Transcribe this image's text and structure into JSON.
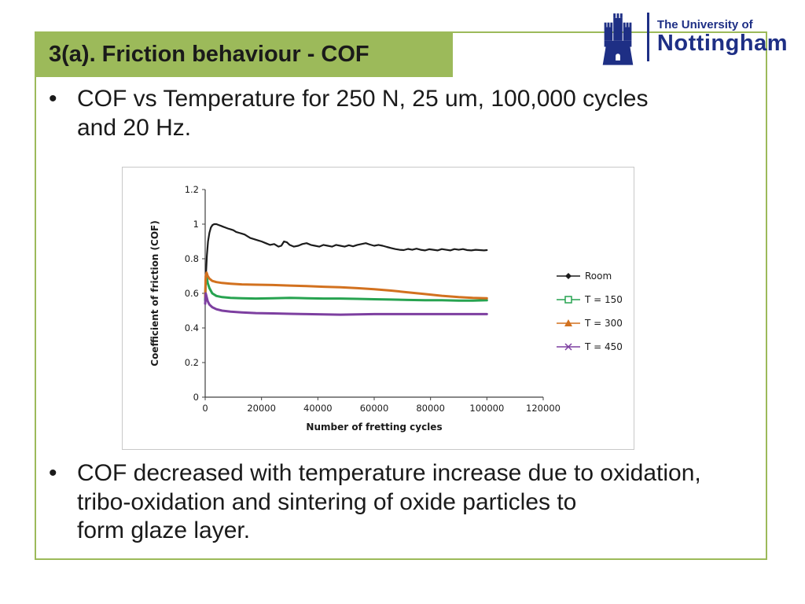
{
  "slide": {
    "title": "3(a). Friction behaviour - COF",
    "bullet_char": "•",
    "bullet1": "COF vs Temperature for 250 N, 25 um, 100,000 cycles\nand 20 Hz.",
    "bullet2": "COF decreased with temperature increase due to oxidation,\ntribo-oxidation and sintering of oxide particles to\nform glaze layer."
  },
  "logo": {
    "line1": "The University of",
    "line2": "Nottingham",
    "color": "#1e2f85"
  },
  "colors": {
    "accent_green": "#9cba5a",
    "frame_border": "#9cba5a",
    "title_text": "#1a1a1a",
    "chart_border": "#c8c8c8",
    "axis_color": "#404040"
  },
  "chart_data": {
    "type": "line",
    "title": "",
    "xlabel": "Number of fretting cycles",
    "ylabel": "Coefficient of friction (COF)",
    "xlim": [
      0,
      120000
    ],
    "ylim": [
      0,
      1.2
    ],
    "xticks": [
      0,
      20000,
      40000,
      60000,
      80000,
      100000,
      120000
    ],
    "yticks": [
      0,
      0.2,
      0.4,
      0.6,
      0.8,
      1,
      1.2
    ],
    "grid": false,
    "legend_position": "right",
    "series": [
      {
        "name": "Room",
        "color": "#1c1c1c",
        "marker": "diamond",
        "points": [
          [
            0,
            0.6
          ],
          [
            300,
            0.72
          ],
          [
            600,
            0.82
          ],
          [
            1000,
            0.9
          ],
          [
            1500,
            0.95
          ],
          [
            2000,
            0.98
          ],
          [
            2600,
            0.995
          ],
          [
            3200,
            1.0
          ],
          [
            4000,
            1.0
          ],
          [
            4800,
            0.995
          ],
          [
            5600,
            0.99
          ],
          [
            6400,
            0.985
          ],
          [
            7200,
            0.98
          ],
          [
            8000,
            0.975
          ],
          [
            9000,
            0.97
          ],
          [
            10000,
            0.965
          ],
          [
            11000,
            0.955
          ],
          [
            12000,
            0.95
          ],
          [
            13000,
            0.945
          ],
          [
            14000,
            0.94
          ],
          [
            15000,
            0.93
          ],
          [
            16000,
            0.92
          ],
          [
            17000,
            0.915
          ],
          [
            18000,
            0.91
          ],
          [
            19000,
            0.905
          ],
          [
            20000,
            0.9
          ],
          [
            21500,
            0.89
          ],
          [
            23000,
            0.88
          ],
          [
            24500,
            0.885
          ],
          [
            26000,
            0.87
          ],
          [
            27000,
            0.875
          ],
          [
            28000,
            0.9
          ],
          [
            29000,
            0.895
          ],
          [
            30000,
            0.88
          ],
          [
            31500,
            0.87
          ],
          [
            33000,
            0.875
          ],
          [
            34500,
            0.885
          ],
          [
            36000,
            0.89
          ],
          [
            37500,
            0.88
          ],
          [
            39000,
            0.875
          ],
          [
            40500,
            0.87
          ],
          [
            42000,
            0.88
          ],
          [
            43500,
            0.875
          ],
          [
            45000,
            0.87
          ],
          [
            46500,
            0.88
          ],
          [
            48000,
            0.875
          ],
          [
            49500,
            0.87
          ],
          [
            51000,
            0.878
          ],
          [
            52500,
            0.872
          ],
          [
            54000,
            0.88
          ],
          [
            55500,
            0.885
          ],
          [
            57000,
            0.89
          ],
          [
            58500,
            0.882
          ],
          [
            60000,
            0.875
          ],
          [
            61500,
            0.88
          ],
          [
            63000,
            0.875
          ],
          [
            64500,
            0.868
          ],
          [
            66000,
            0.862
          ],
          [
            67500,
            0.856
          ],
          [
            69000,
            0.852
          ],
          [
            70500,
            0.85
          ],
          [
            72000,
            0.857
          ],
          [
            73500,
            0.852
          ],
          [
            75000,
            0.858
          ],
          [
            76500,
            0.852
          ],
          [
            78000,
            0.848
          ],
          [
            79500,
            0.855
          ],
          [
            81000,
            0.852
          ],
          [
            82500,
            0.848
          ],
          [
            84000,
            0.856
          ],
          [
            85500,
            0.852
          ],
          [
            87000,
            0.848
          ],
          [
            88500,
            0.856
          ],
          [
            90000,
            0.852
          ],
          [
            91500,
            0.856
          ],
          [
            93000,
            0.85
          ],
          [
            94500,
            0.848
          ],
          [
            96000,
            0.852
          ],
          [
            97500,
            0.85
          ],
          [
            99000,
            0.848
          ],
          [
            100000,
            0.85
          ]
        ]
      },
      {
        "name": "T = 150",
        "color": "#27a350",
        "marker": "square",
        "points": [
          [
            0,
            0.56
          ],
          [
            200,
            0.68
          ],
          [
            500,
            0.7
          ],
          [
            900,
            0.66
          ],
          [
            1500,
            0.63
          ],
          [
            2500,
            0.6
          ],
          [
            4000,
            0.585
          ],
          [
            6000,
            0.578
          ],
          [
            9000,
            0.574
          ],
          [
            13000,
            0.572
          ],
          [
            18000,
            0.57
          ],
          [
            24000,
            0.572
          ],
          [
            30000,
            0.574
          ],
          [
            36000,
            0.572
          ],
          [
            42000,
            0.57
          ],
          [
            48000,
            0.57
          ],
          [
            54000,
            0.568
          ],
          [
            60000,
            0.566
          ],
          [
            66000,
            0.564
          ],
          [
            72000,
            0.562
          ],
          [
            78000,
            0.56
          ],
          [
            84000,
            0.56
          ],
          [
            90000,
            0.558
          ],
          [
            95000,
            0.558
          ],
          [
            100000,
            0.56
          ]
        ]
      },
      {
        "name": "T = 300",
        "color": "#d2711f",
        "marker": "triangle",
        "points": [
          [
            0,
            0.58
          ],
          [
            200,
            0.7
          ],
          [
            500,
            0.72
          ],
          [
            900,
            0.7
          ],
          [
            1500,
            0.685
          ],
          [
            2500,
            0.672
          ],
          [
            4000,
            0.665
          ],
          [
            6000,
            0.66
          ],
          [
            9000,
            0.656
          ],
          [
            13000,
            0.652
          ],
          [
            18000,
            0.65
          ],
          [
            24000,
            0.648
          ],
          [
            30000,
            0.645
          ],
          [
            36000,
            0.642
          ],
          [
            42000,
            0.638
          ],
          [
            48000,
            0.635
          ],
          [
            54000,
            0.63
          ],
          [
            60000,
            0.624
          ],
          [
            66000,
            0.616
          ],
          [
            72000,
            0.606
          ],
          [
            78000,
            0.596
          ],
          [
            84000,
            0.586
          ],
          [
            90000,
            0.578
          ],
          [
            95000,
            0.574
          ],
          [
            100000,
            0.572
          ]
        ]
      },
      {
        "name": "T = 450",
        "color": "#7d3fa0",
        "marker": "x",
        "points": [
          [
            0,
            0.54
          ],
          [
            200,
            0.6
          ],
          [
            500,
            0.58
          ],
          [
            900,
            0.555
          ],
          [
            1500,
            0.535
          ],
          [
            2500,
            0.52
          ],
          [
            4000,
            0.508
          ],
          [
            6000,
            0.5
          ],
          [
            9000,
            0.494
          ],
          [
            13000,
            0.49
          ],
          [
            18000,
            0.486
          ],
          [
            24000,
            0.484
          ],
          [
            30000,
            0.482
          ],
          [
            36000,
            0.48
          ],
          [
            42000,
            0.478
          ],
          [
            48000,
            0.477
          ],
          [
            54000,
            0.478
          ],
          [
            60000,
            0.48
          ],
          [
            66000,
            0.48
          ],
          [
            72000,
            0.48
          ],
          [
            78000,
            0.48
          ],
          [
            84000,
            0.48
          ],
          [
            90000,
            0.48
          ],
          [
            95000,
            0.48
          ],
          [
            100000,
            0.48
          ]
        ]
      }
    ]
  }
}
